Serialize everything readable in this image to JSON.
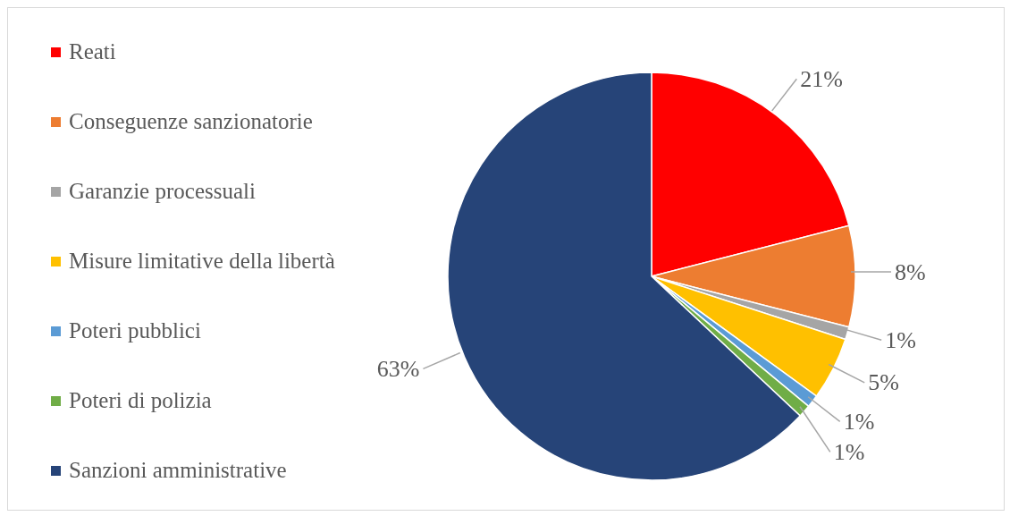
{
  "chart_data": {
    "type": "pie",
    "categories": [
      "Reati",
      "Conseguenze sanzionatorie",
      "Garanzie processuali",
      "Misure limitative della libertà",
      "Poteri pubblici",
      "Poteri di polizia",
      "Sanzioni amministrative"
    ],
    "values": [
      21,
      8,
      1,
      5,
      1,
      1,
      63
    ],
    "value_labels": [
      "21%",
      "8%",
      "1%",
      "5%",
      "1%",
      "1%",
      "63%"
    ],
    "colors": [
      "#ff0000",
      "#ed7d31",
      "#a5a5a5",
      "#ffc000",
      "#5b9bd5",
      "#70ad47",
      "#264478"
    ],
    "legend": "left"
  }
}
